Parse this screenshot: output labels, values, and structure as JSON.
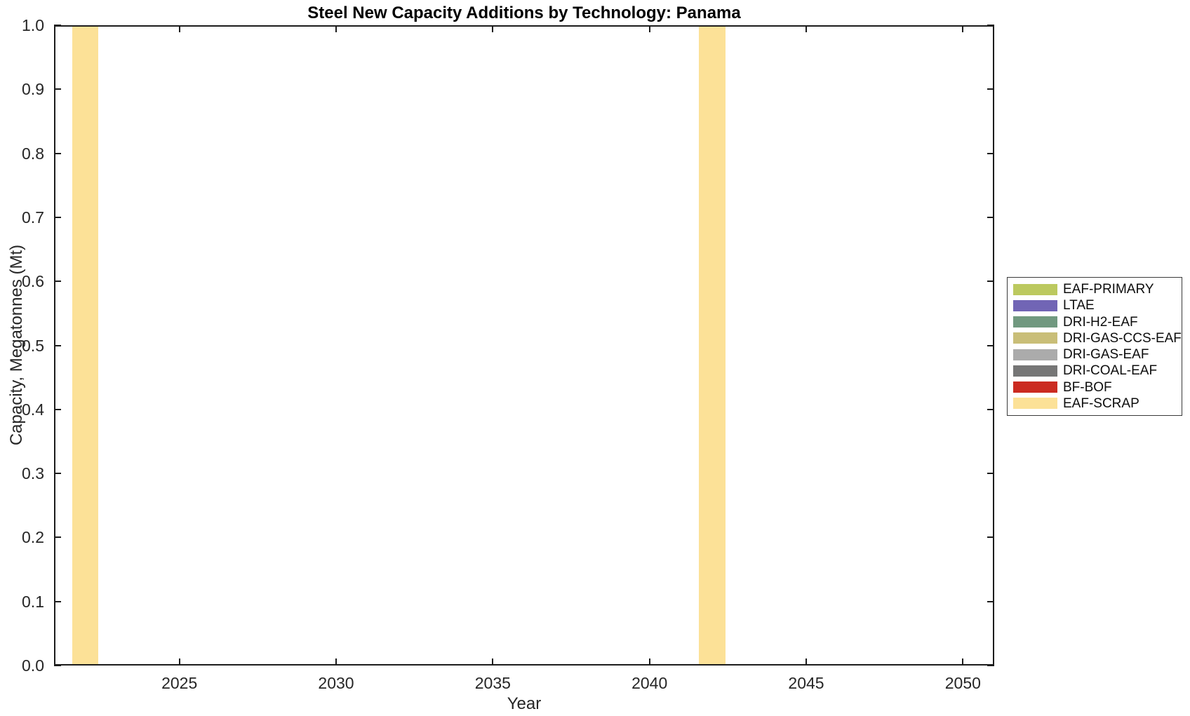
{
  "chart_data": {
    "type": "bar",
    "title": "Steel New Capacity Additions by Technology: Panama",
    "xlabel": "Year",
    "ylabel": "Capacity, Megatonnes (Mt)",
    "xlim": [
      2021,
      2051
    ],
    "ylim": [
      0.0,
      1.0
    ],
    "x_ticks": [
      2025,
      2030,
      2035,
      2040,
      2045,
      2050
    ],
    "y_ticks": [
      {
        "value": 0.0,
        "label": "0.0"
      },
      {
        "value": 0.1,
        "label": "0.1"
      },
      {
        "value": 0.2,
        "label": "0.2"
      },
      {
        "value": 0.3,
        "label": "0.3"
      },
      {
        "value": 0.4,
        "label": "0.4"
      },
      {
        "value": 0.5,
        "label": "0.5"
      },
      {
        "value": 0.6,
        "label": "0.6"
      },
      {
        "value": 0.7,
        "label": "0.7"
      },
      {
        "value": 0.8,
        "label": "0.8"
      },
      {
        "value": 0.9,
        "label": "0.9"
      },
      {
        "value": 1.0,
        "label": "1.0"
      }
    ],
    "grid": false,
    "bar_width_years": 0.83,
    "legend_position": "right-outside",
    "series": [
      {
        "name": "EAF-PRIMARY",
        "color": "#BCC95F",
        "data": []
      },
      {
        "name": "LTAE",
        "color": "#7165B5",
        "data": []
      },
      {
        "name": "DRI-H2-EAF",
        "color": "#719980",
        "data": []
      },
      {
        "name": "DRI-GAS-CCS-EAF",
        "color": "#C9BE78",
        "data": []
      },
      {
        "name": "DRI-GAS-EAF",
        "color": "#ABABAB",
        "data": []
      },
      {
        "name": "DRI-COAL-EAF",
        "color": "#767676",
        "data": []
      },
      {
        "name": "BF-BOF",
        "color": "#CB2B21",
        "data": []
      },
      {
        "name": "EAF-SCRAP",
        "color": "#FCE197",
        "data": [
          {
            "x": 2022,
            "y": 1.0
          },
          {
            "x": 2042,
            "y": 1.0
          }
        ]
      }
    ]
  }
}
